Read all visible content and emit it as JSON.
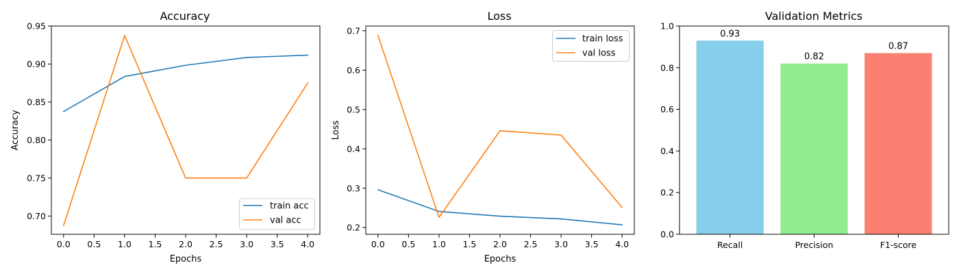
{
  "chart_data": [
    {
      "type": "line",
      "title": "Accuracy",
      "xlabel": "Epochs",
      "ylabel": "Accuracy",
      "xlim": [
        -0.2,
        4.2
      ],
      "ylim": [
        0.676,
        0.95
      ],
      "xticks": [
        0.0,
        0.5,
        1.0,
        1.5,
        2.0,
        2.5,
        3.0,
        3.5,
        4.0
      ],
      "xtick_labels": [
        "0.0",
        "0.5",
        "1.0",
        "1.5",
        "2.0",
        "2.5",
        "3.0",
        "3.5",
        "4.0"
      ],
      "yticks": [
        0.7,
        0.75,
        0.8,
        0.85,
        0.9,
        0.95
      ],
      "ytick_labels": [
        "0.70",
        "0.75",
        "0.80",
        "0.85",
        "0.90",
        "0.95"
      ],
      "x": [
        0,
        1,
        2,
        3,
        4
      ],
      "series": [
        {
          "name": "train acc",
          "color": "#1f77b4",
          "values": [
            0.8375,
            0.8836,
            0.8984,
            0.9086,
            0.9117
          ]
        },
        {
          "name": "val acc",
          "color": "#ff7f0e",
          "values": [
            0.6875,
            0.9375,
            0.75,
            0.75,
            0.875
          ]
        }
      ],
      "legend": "lower-right",
      "grid": false
    },
    {
      "type": "line",
      "title": "Loss",
      "xlabel": "Epochs",
      "ylabel": "Loss",
      "xlim": [
        -0.2,
        4.2
      ],
      "ylim": [
        0.183,
        0.712
      ],
      "xticks": [
        0.0,
        0.5,
        1.0,
        1.5,
        2.0,
        2.5,
        3.0,
        3.5,
        4.0
      ],
      "xtick_labels": [
        "0.0",
        "0.5",
        "1.0",
        "1.5",
        "2.0",
        "2.5",
        "3.0",
        "3.5",
        "4.0"
      ],
      "yticks": [
        0.2,
        0.3,
        0.4,
        0.5,
        0.6,
        0.7
      ],
      "ytick_labels": [
        "0.2",
        "0.3",
        "0.4",
        "0.5",
        "0.6",
        "0.7"
      ],
      "x": [
        0,
        1,
        2,
        3,
        4
      ],
      "series": [
        {
          "name": "train loss",
          "color": "#1f77b4",
          "values": [
            0.296,
            0.241,
            0.229,
            0.222,
            0.207
          ]
        },
        {
          "name": "val loss",
          "color": "#ff7f0e",
          "values": [
            0.688,
            0.226,
            0.446,
            0.435,
            0.251
          ]
        }
      ],
      "legend": "upper-right",
      "grid": false
    },
    {
      "type": "bar",
      "title": "Validation Metrics",
      "categories": [
        "Recall",
        "Precision",
        "F1-score"
      ],
      "values": [
        0.93,
        0.82,
        0.87
      ],
      "value_labels": [
        "0.93",
        "0.82",
        "0.87"
      ],
      "colors": [
        "#87ceeb",
        "#90ee90",
        "#fa8072"
      ],
      "ylim": [
        0,
        1.0
      ],
      "yticks": [
        0.0,
        0.2,
        0.4,
        0.6,
        0.8,
        1.0
      ],
      "ytick_labels": [
        "0.0",
        "0.2",
        "0.4",
        "0.6",
        "0.8",
        "1.0"
      ],
      "grid": false
    }
  ]
}
